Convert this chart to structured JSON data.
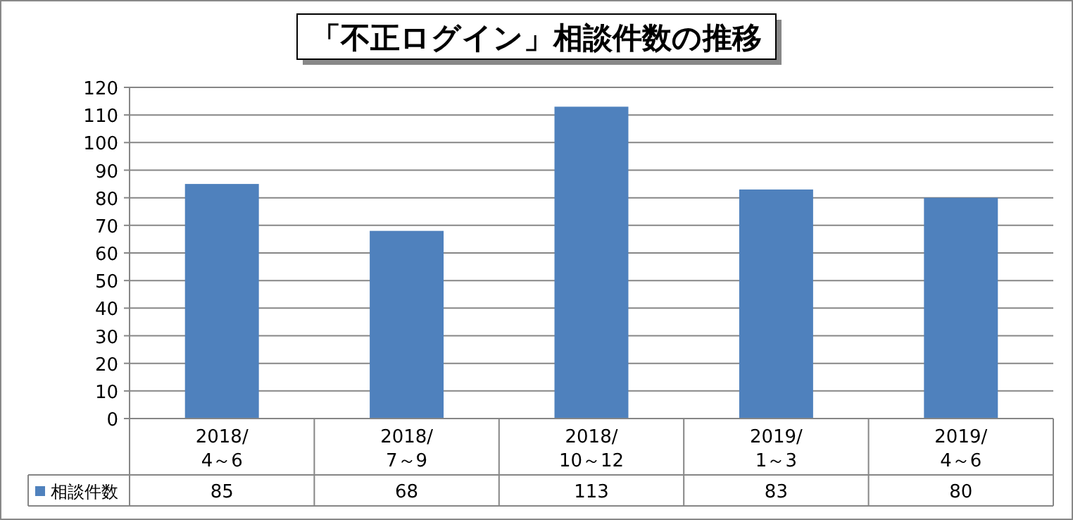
{
  "chart_data": {
    "type": "bar",
    "title": "「不正ログイン」相談件数の推移",
    "categories": [
      "2018/4～6",
      "2018/7～9",
      "2018/10～12",
      "2019/1～3",
      "2019/4～6"
    ],
    "series": [
      {
        "name": "相談件数",
        "color": "#4f81bd",
        "values": [
          85,
          68,
          113,
          83,
          80
        ]
      }
    ],
    "ylim": [
      0,
      120
    ],
    "yticks": [
      0,
      10,
      20,
      30,
      40,
      50,
      60,
      70,
      80,
      90,
      100,
      110,
      120
    ],
    "grid": "y",
    "legend": "bottom",
    "data_labels": true
  }
}
